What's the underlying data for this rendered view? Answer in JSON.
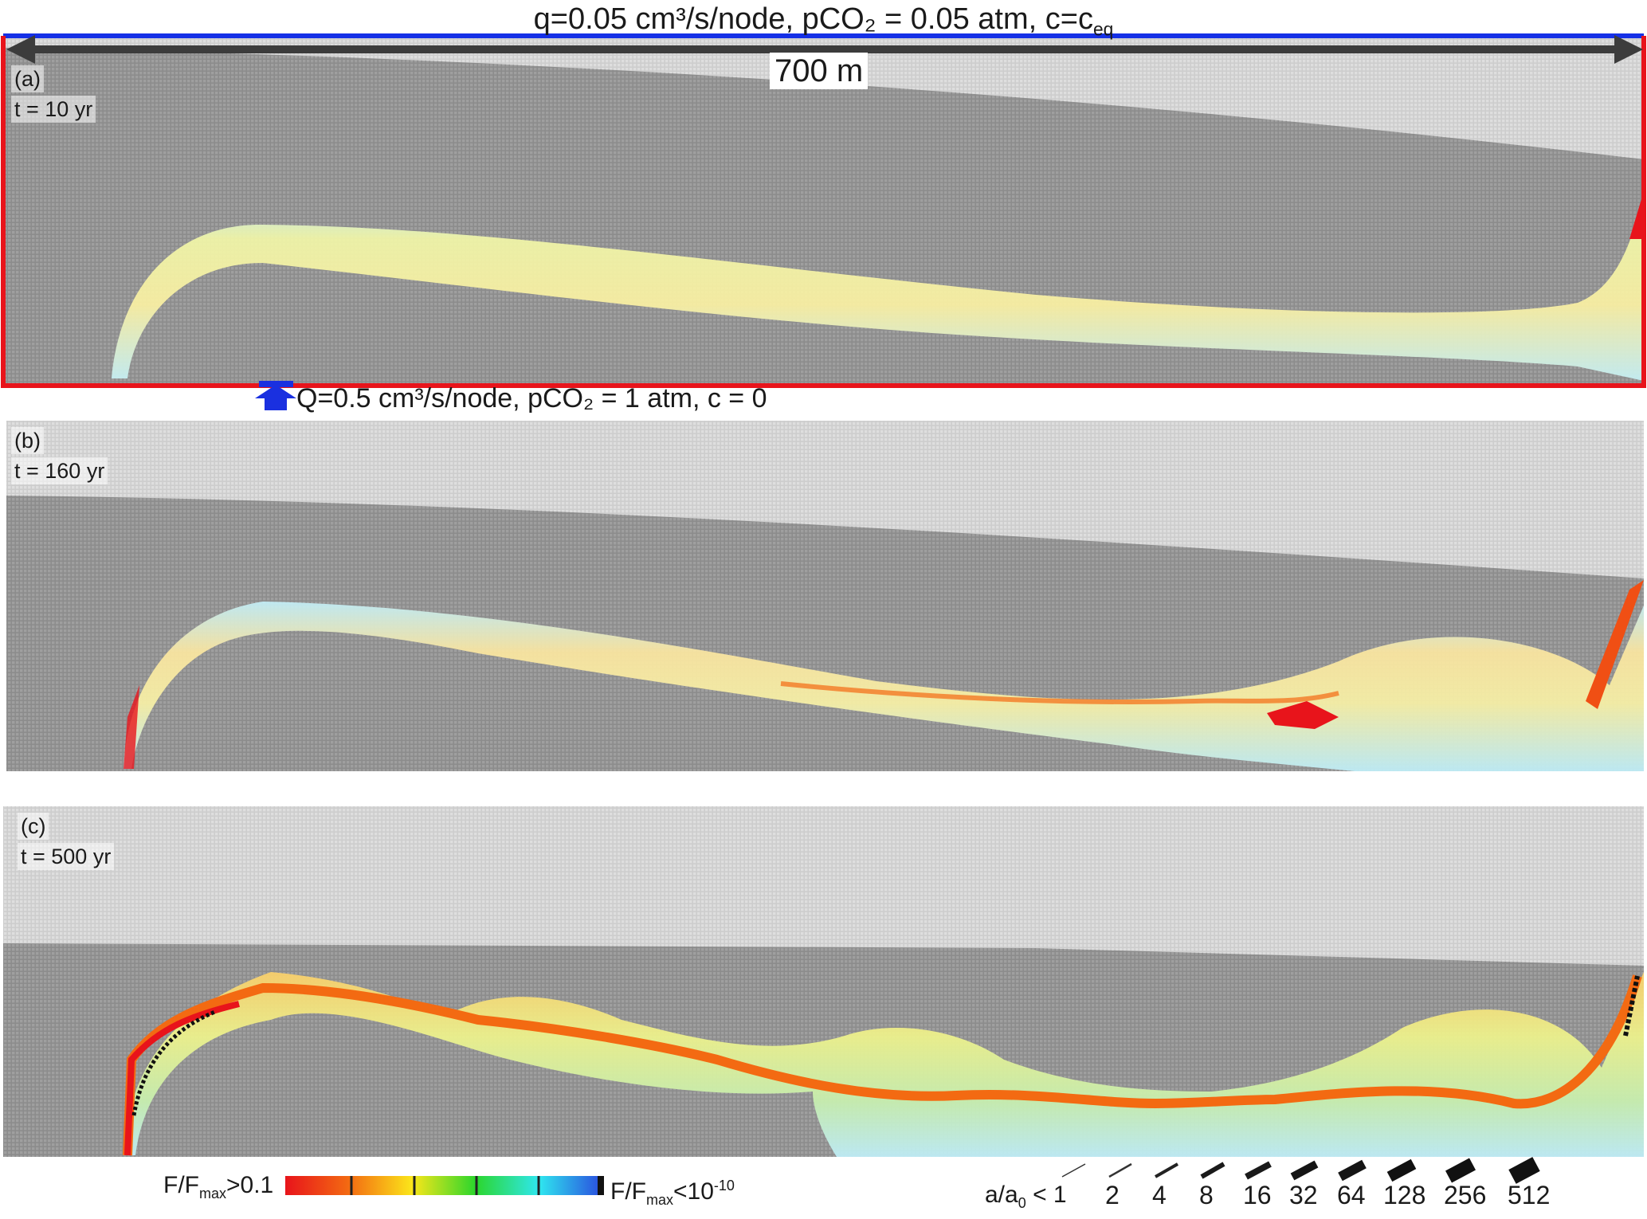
{
  "boundary": {
    "top_condition": "q=0.05 cm³/s/node, pCO₂ = 0.05 atm, c=c",
    "top_condition_sub": "eq",
    "domain_length": "700 m",
    "inlet_condition": "Q=0.5 cm³/s/node, pCO₂ = 1 atm, c = 0"
  },
  "panels": [
    {
      "letter": "(a)",
      "time": "t = 10 yr"
    },
    {
      "letter": "(b)",
      "time": "t = 160 yr"
    },
    {
      "letter": "(c)",
      "time": "t = 500 yr"
    }
  ],
  "flux_colorbar": {
    "label_high": "F/F",
    "label_high_sub": "max",
    "label_high_tail": ">0.1",
    "label_low": "F/F",
    "label_low_sub": "max",
    "label_low_tail": "<10",
    "label_low_exp": "-10",
    "colors": [
      "#e8141b",
      "#f36a12",
      "#fbe61a",
      "#2bd62c",
      "#2fe7ef",
      "#2a4bde"
    ]
  },
  "aperture_legend": {
    "label": "a/a",
    "label_sub": "0",
    "label_tail": " < 1",
    "values": [
      "2",
      "4",
      "8",
      "16",
      "32",
      "64",
      "128",
      "256",
      "512"
    ]
  },
  "colors": {
    "boundary_top": "#1530e6",
    "boundary_side": "#e8141b",
    "arrow": "#3c3c3c",
    "inlet": "#1a30e0",
    "rock": "#8f8f8f",
    "rock_light": "#d6d6d6",
    "mark_dark": "#111111"
  }
}
